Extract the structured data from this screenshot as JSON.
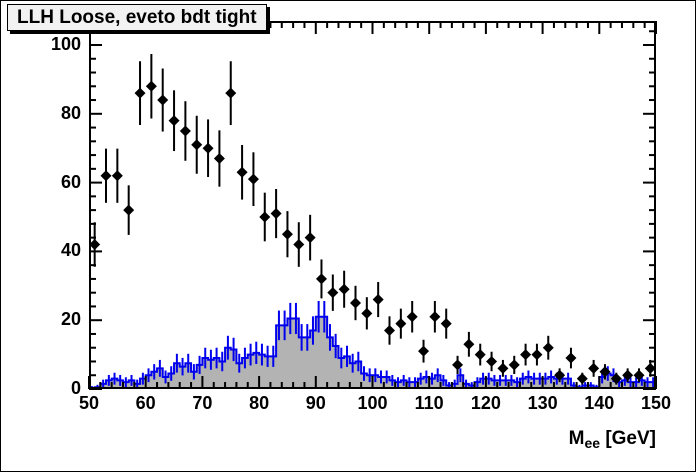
{
  "title_box": {
    "text": "LLH Loose, eveto bdt tight",
    "bg": "#f2f2f2"
  },
  "axes": {
    "x": {
      "label_main": "M",
      "label_sub": "ee",
      "label_unit": " [GeV]",
      "tick_labels": [
        "50",
        "60",
        "70",
        "80",
        "90",
        "100",
        "110",
        "120",
        "130",
        "140",
        "150"
      ]
    },
    "y": {
      "tick_labels": [
        "0",
        "20",
        "40",
        "60",
        "80",
        "100"
      ]
    }
  },
  "colors": {
    "frame": "#000000",
    "marker": "#000000",
    "hist_line": "#0000ee",
    "hist_fill": "#b3b3b3",
    "background": "#ffffff"
  },
  "chart_data": {
    "type": "histogram",
    "title": "LLH Loose, eveto bdt tight",
    "xlabel": "M_ee [GeV]",
    "ylabel": "",
    "xlim": [
      50,
      150
    ],
    "ylim": [
      0,
      107
    ],
    "x_major_ticks": [
      50,
      60,
      70,
      80,
      90,
      100,
      110,
      120,
      130,
      140,
      150
    ],
    "y_major_ticks": [
      0,
      20,
      40,
      60,
      80,
      100
    ],
    "x_minor_step": 2,
    "y_minor_step": 4,
    "grid": false,
    "legend": false,
    "mirrored_ticks": true,
    "series": [
      {
        "name": "data-points",
        "style": "points",
        "marker": "filled_diamond",
        "color": "#000000",
        "errors": "sqrt",
        "bin_width": 2,
        "centers": [
          51,
          53,
          55,
          57,
          59,
          61,
          63,
          65,
          67,
          69,
          71,
          73,
          75,
          77,
          79,
          81,
          83,
          85,
          87,
          89,
          91,
          93,
          95,
          97,
          99,
          101,
          103,
          105,
          107,
          109,
          111,
          113,
          115,
          117,
          119,
          121,
          123,
          125,
          127,
          129,
          131,
          133,
          135,
          137,
          139,
          141,
          143,
          145,
          147,
          149
        ],
        "values": [
          42,
          62,
          62,
          52,
          86,
          88,
          84,
          78,
          75,
          71,
          70,
          67,
          86,
          63,
          61,
          50,
          51,
          45,
          42,
          44,
          32,
          28,
          29,
          25,
          22,
          26,
          17,
          19,
          21,
          11,
          21,
          19,
          7,
          13,
          10,
          8,
          6,
          7,
          10,
          10,
          12,
          4,
          9,
          3,
          6,
          5,
          3,
          4,
          4,
          6
        ]
      },
      {
        "name": "background-histogram",
        "style": "filled_step_histogram",
        "line_color": "#0000ee",
        "fill_color": "#b3b3b3",
        "errors": "sqrt",
        "bin_width": 1,
        "bin_start": 50,
        "values": [
          0.3,
          0.5,
          1.5,
          2.5,
          3,
          2.5,
          2,
          2.5,
          1.5,
          3,
          4,
          5,
          6,
          3.5,
          4.5,
          7.5,
          6.5,
          7.5,
          5,
          7,
          9,
          8.5,
          9,
          8,
          12,
          11.5,
          7.5,
          9,
          10,
          10.5,
          10,
          9.5,
          9.5,
          18.5,
          18.5,
          20.5,
          20.5,
          15,
          15,
          17,
          21,
          21,
          15,
          12.5,
          9,
          9.5,
          7.5,
          8,
          4.5,
          4,
          4,
          3.5,
          3.5,
          2.5,
          2,
          2.5,
          2,
          2,
          3,
          3.5,
          3,
          4,
          2.5,
          1,
          1.5,
          4,
          1.5,
          1,
          2,
          3,
          3,
          2.5,
          2.5,
          2.5,
          2.5,
          2,
          3,
          3.5,
          3,
          3,
          3,
          3.5,
          3,
          3,
          3,
          1,
          0.5,
          1,
          1,
          0.5,
          3.5,
          4.5,
          4,
          2,
          2.5,
          2,
          2,
          2.5,
          2,
          2
        ]
      }
    ]
  }
}
